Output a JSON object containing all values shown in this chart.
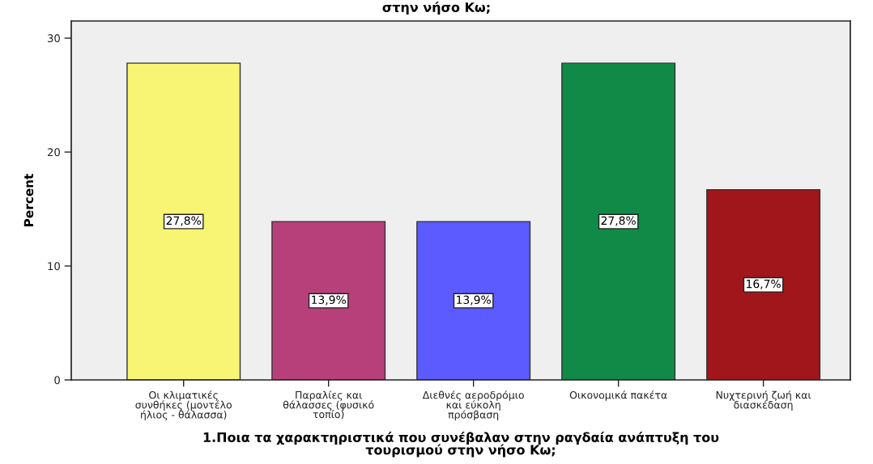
{
  "chart_data": {
    "type": "bar",
    "title": "στην νήσο Κω;",
    "xlabel": "1.Ποια τα χαρακτηριστικά που συνέβαλαν στην ραγδαία ανάπτυξη του\nτουρισμού στην νήσο Κω;",
    "ylabel": "Percent",
    "categories": [
      "Οι κλιματικές\nσυνθήκες (μοντέλο\nήλιος - θάλασσα)",
      "Παραλίες και\nθάλασσες (φυσικό\nτοπίο)",
      "Διεθνές αεροδρόμιο\nκαι εύκολη\nπρόσβαση",
      "Οικονομικά πακέτα",
      "Νυχτερινή ζωή και\nδιασκέδαση"
    ],
    "values": [
      27.8,
      13.9,
      13.9,
      27.8,
      16.7
    ],
    "colors": [
      "#f8f474",
      "#b8407a",
      "#5b5bff",
      "#118a47",
      "#a0161a"
    ],
    "value_labels": [
      "27,8%",
      "13,9%",
      "13,9%",
      "27,8%",
      "16,7%"
    ],
    "ylim": [
      0,
      31.5
    ],
    "yticks": [
      0,
      10,
      20,
      30
    ],
    "grid": false,
    "legend": false
  }
}
